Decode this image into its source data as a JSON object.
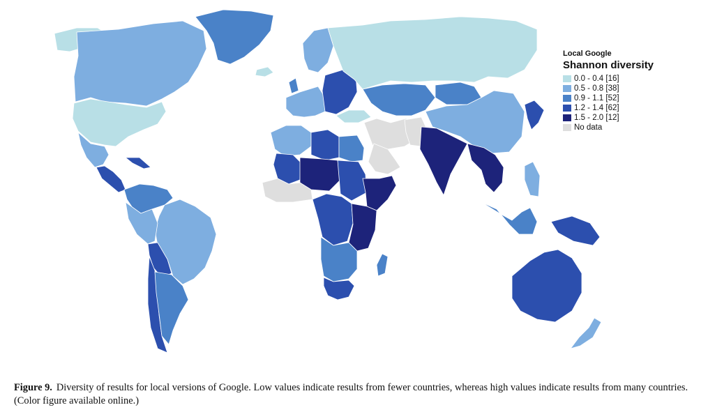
{
  "legend": {
    "subtitle": "Local Google",
    "title": "Shannon diversity",
    "classes": [
      {
        "label": "0.0 - 0.4 [16]",
        "color": "#b8dfe6"
      },
      {
        "label": "0.5 - 0.8 [38]",
        "color": "#7eaee0"
      },
      {
        "label": "0.9 - 1.1 [52]",
        "color": "#4a82c8"
      },
      {
        "label": "1.2 - 1.4 [62]",
        "color": "#2c4fae"
      },
      {
        "label": "1.5 - 2.0 [12]",
        "color": "#1d237a"
      },
      {
        "label": "No data",
        "color": "#dedede"
      }
    ]
  },
  "caption": {
    "label": "Figure 9.",
    "text": "Diversity of results for local versions of Google. Low values indicate results from fewer countries, whereas high values indicate results from many countries. (Color figure available online.)"
  },
  "map_regions": [
    {
      "name": "alaska",
      "class": 0
    },
    {
      "name": "canada",
      "class": 1
    },
    {
      "name": "greenland",
      "class": 2
    },
    {
      "name": "usa",
      "class": 0
    },
    {
      "name": "mexico",
      "class": 1
    },
    {
      "name": "central-america",
      "class": 3
    },
    {
      "name": "cuba",
      "class": 3
    },
    {
      "name": "venezuela-colombia",
      "class": 2
    },
    {
      "name": "brazil",
      "class": 1
    },
    {
      "name": "peru-ecuador",
      "class": 1
    },
    {
      "name": "bolivia",
      "class": 3
    },
    {
      "name": "chile",
      "class": 3
    },
    {
      "name": "argentina",
      "class": 2
    },
    {
      "name": "iceland",
      "class": 0
    },
    {
      "name": "scandinavia",
      "class": 1
    },
    {
      "name": "uk",
      "class": 2
    },
    {
      "name": "western-europe",
      "class": 1
    },
    {
      "name": "eastern-europe",
      "class": 3
    },
    {
      "name": "russia",
      "class": 0
    },
    {
      "name": "turkey",
      "class": 0
    },
    {
      "name": "middle-east",
      "class": 5
    },
    {
      "name": "iran",
      "class": 5
    },
    {
      "name": "saudi-arabia",
      "class": 2
    },
    {
      "name": "central-asia",
      "class": 2
    },
    {
      "name": "mongolia",
      "class": 1
    },
    {
      "name": "china",
      "class": 5
    },
    {
      "name": "pakistan",
      "class": 4
    },
    {
      "name": "india",
      "class": 4
    },
    {
      "name": "southeast-asia",
      "class": 3
    },
    {
      "name": "korea-japan",
      "class": 1
    },
    {
      "name": "philippines",
      "class": 2
    },
    {
      "name": "indonesia",
      "class": 3
    },
    {
      "name": "new-guinea",
      "class": 3
    },
    {
      "name": "australia",
      "class": 1
    },
    {
      "name": "new-zealand",
      "class": 1
    },
    {
      "name": "north-africa-west",
      "class": 3
    },
    {
      "name": "libya",
      "class": 2
    },
    {
      "name": "egypt",
      "class": 3
    },
    {
      "name": "mali",
      "class": 4
    },
    {
      "name": "sahel",
      "class": 3
    },
    {
      "name": "sudan",
      "class": 5
    },
    {
      "name": "west-africa",
      "class": 4
    },
    {
      "name": "horn-of-africa",
      "class": 3
    },
    {
      "name": "central-africa",
      "class": 4
    },
    {
      "name": "east-africa",
      "class": 2
    },
    {
      "name": "southern-africa",
      "class": 3
    },
    {
      "name": "south-africa",
      "class": 2
    },
    {
      "name": "madagascar",
      "class": 2
    }
  ]
}
